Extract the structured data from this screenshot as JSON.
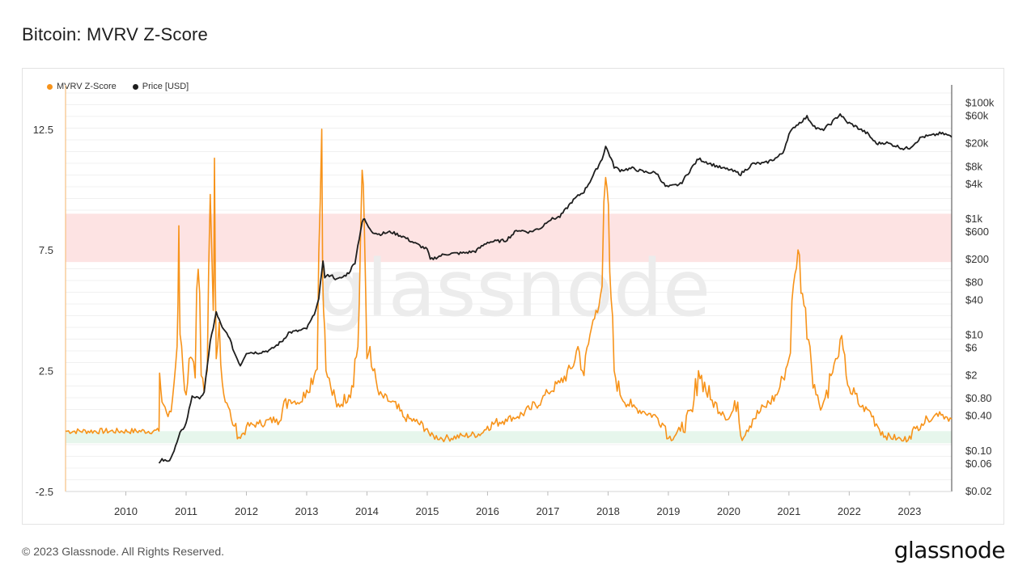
{
  "header": {
    "title": "Bitcoin: MVRV Z-Score"
  },
  "footer": {
    "copyright": "© 2023 Glassnode. All Rights Reserved.",
    "brand": "glassnode"
  },
  "watermark": "glassnode",
  "colors": {
    "mvrv": "#f7931a",
    "price": "#1e1e1e",
    "red_band": "#fde3e3",
    "green_band": "#e6f6ec"
  },
  "chart_data": {
    "type": "line",
    "title": "Bitcoin: MVRV Z-Score",
    "legend": [
      {
        "name": "MVRV Z-Score",
        "color": "#f7931a"
      },
      {
        "name": "Price [USD]",
        "color": "#1e1e1e"
      }
    ],
    "legend_placement": "top-left",
    "grid": true,
    "x_ticks": [
      "2010",
      "2011",
      "2012",
      "2013",
      "2014",
      "2015",
      "2016",
      "2017",
      "2018",
      "2019",
      "2020",
      "2021",
      "2022",
      "2023"
    ],
    "xlim": [
      2009.0,
      2023.7
    ],
    "y_left": {
      "ticks": [
        "12.5",
        "7.5",
        "2.5",
        "-2.5"
      ],
      "tick_values": [
        12.5,
        7.5,
        2.5,
        -2.5
      ],
      "ylim": [
        -2.5,
        14.0
      ]
    },
    "y_right": {
      "scale": "log",
      "ticks": [
        "$100k",
        "$60k",
        "$20k",
        "$8k",
        "$4k",
        "$1k",
        "$600",
        "$200",
        "$80",
        "$40",
        "$10",
        "$6",
        "$2",
        "$0.80",
        "$0.40",
        "$0.10",
        "$0.06",
        "$0.02"
      ],
      "tick_values": [
        100000,
        60000,
        20000,
        8000,
        4000,
        1000,
        600,
        200,
        80,
        40,
        10,
        6,
        2,
        0.8,
        0.4,
        0.1,
        0.06,
        0.02
      ],
      "ylim": [
        0.02,
        150000
      ]
    },
    "bands": [
      {
        "name": "overvalued-zone",
        "y_from": 7.0,
        "y_to": 9.0,
        "color": "#fde3e3"
      },
      {
        "name": "undervalued-zone",
        "y_from": -0.5,
        "y_to": 0.0,
        "color": "#e6f6ec"
      }
    ],
    "series": [
      {
        "name": "MVRV Z-Score",
        "color": "#f7931a",
        "x": [
          2009.0,
          2010.55,
          2010.56,
          2010.6,
          2010.65,
          2010.7,
          2010.75,
          2010.8,
          2010.85,
          2010.88,
          2010.9,
          2010.95,
          2011.0,
          2011.05,
          2011.1,
          2011.15,
          2011.2,
          2011.25,
          2011.3,
          2011.35,
          2011.4,
          2011.45,
          2011.47,
          2011.5,
          2011.55,
          2011.6,
          2011.65,
          2011.7,
          2011.75,
          2011.8,
          2011.9,
          2012.0,
          2012.2,
          2012.5,
          2012.7,
          2012.9,
          2013.0,
          2013.15,
          2013.25,
          2013.28,
          2013.32,
          2013.4,
          2013.5,
          2013.7,
          2013.85,
          2013.92,
          2013.96,
          2014.0,
          2014.05,
          2014.1,
          2014.2,
          2014.4,
          2014.6,
          2014.8,
          2015.0,
          2015.05,
          2015.3,
          2015.6,
          2015.9,
          2016.0,
          2016.3,
          2016.5,
          2016.7,
          2016.9,
          2017.0,
          2017.2,
          2017.4,
          2017.5,
          2017.6,
          2017.7,
          2017.8,
          2017.9,
          2017.96,
          2018.05,
          2018.1,
          2018.2,
          2018.4,
          2018.6,
          2018.8,
          2018.95,
          2019.0,
          2019.2,
          2019.4,
          2019.5,
          2019.7,
          2019.9,
          2020.0,
          2020.15,
          2020.2,
          2020.4,
          2020.6,
          2020.8,
          2020.9,
          2021.0,
          2021.1,
          2021.15,
          2021.25,
          2021.35,
          2021.45,
          2021.55,
          2021.7,
          2021.8,
          2021.85,
          2021.95,
          2022.0,
          2022.2,
          2022.35,
          2022.45,
          2022.6,
          2022.8,
          2022.9,
          2023.0,
          2023.1,
          2023.2,
          2023.3,
          2023.4,
          2023.5,
          2023.6,
          2023.7
        ],
        "values": [
          0.0,
          0.0,
          2.4,
          1.2,
          1.0,
          0.6,
          0.8,
          2.0,
          3.5,
          8.5,
          4.0,
          2.5,
          1.5,
          3.0,
          3.0,
          2.2,
          6.7,
          2.3,
          1.6,
          2.5,
          9.8,
          5.0,
          11.3,
          3.0,
          4.5,
          2.0,
          1.2,
          1.0,
          0.5,
          0.2,
          -0.3,
          0.2,
          0.3,
          0.5,
          1.3,
          1.2,
          1.7,
          2.5,
          12.5,
          5.0,
          2.5,
          1.8,
          1.0,
          1.5,
          3.5,
          10.8,
          8.0,
          3.0,
          3.5,
          2.5,
          1.5,
          1.2,
          0.6,
          0.4,
          0.1,
          -0.2,
          -0.3,
          -0.2,
          -0.1,
          0.2,
          0.5,
          0.6,
          0.9,
          1.3,
          1.6,
          2.0,
          2.6,
          3.5,
          2.3,
          4.0,
          5.0,
          6.0,
          10.5,
          5.5,
          2.5,
          1.5,
          1.0,
          0.8,
          0.6,
          0.2,
          -0.3,
          0.0,
          0.8,
          2.5,
          1.3,
          0.8,
          0.5,
          1.2,
          -0.2,
          0.5,
          1.0,
          1.5,
          2.2,
          3.0,
          6.5,
          7.5,
          5.2,
          3.5,
          1.5,
          1.0,
          2.3,
          3.0,
          3.8,
          2.3,
          1.8,
          1.0,
          0.8,
          0.3,
          -0.2,
          -0.3,
          -0.4,
          -0.2,
          0.1,
          0.3,
          0.5,
          0.6,
          0.8,
          0.6,
          0.5
        ]
      },
      {
        "name": "Price [USD]",
        "color": "#1e1e1e",
        "x": [
          2010.55,
          2010.6,
          2010.7,
          2010.8,
          2010.9,
          2011.0,
          2011.1,
          2011.2,
          2011.3,
          2011.4,
          2011.45,
          2011.5,
          2011.6,
          2011.7,
          2011.8,
          2011.9,
          2012.0,
          2012.2,
          2012.4,
          2012.6,
          2012.7,
          2012.9,
          2013.0,
          2013.1,
          2013.2,
          2013.27,
          2013.3,
          2013.4,
          2013.5,
          2013.6,
          2013.7,
          2013.8,
          2013.92,
          2013.96,
          2014.0,
          2014.1,
          2014.2,
          2014.4,
          2014.6,
          2014.8,
          2015.0,
          2015.05,
          2015.3,
          2015.6,
          2015.8,
          2016.0,
          2016.3,
          2016.5,
          2016.7,
          2016.9,
          2017.0,
          2017.2,
          2017.4,
          2017.5,
          2017.6,
          2017.7,
          2017.8,
          2017.9,
          2017.96,
          2018.05,
          2018.1,
          2018.2,
          2018.4,
          2018.6,
          2018.8,
          2018.95,
          2019.0,
          2019.2,
          2019.4,
          2019.5,
          2019.7,
          2019.9,
          2020.0,
          2020.2,
          2020.4,
          2020.6,
          2020.8,
          2020.9,
          2021.0,
          2021.1,
          2021.2,
          2021.3,
          2021.45,
          2021.55,
          2021.7,
          2021.85,
          2021.95,
          2022.1,
          2022.3,
          2022.45,
          2022.6,
          2022.8,
          2022.9,
          2023.0,
          2023.2,
          2023.4,
          2023.5,
          2023.6,
          2023.7
        ],
        "values": [
          0.06,
          0.07,
          0.065,
          0.1,
          0.2,
          0.3,
          0.9,
          0.8,
          1.0,
          8.0,
          13.0,
          25.0,
          13.0,
          10.0,
          5.0,
          3.0,
          5.0,
          5.0,
          5.5,
          8.0,
          11.0,
          12.0,
          13.0,
          20.0,
          40.0,
          200.0,
          100.0,
          110.0,
          90.0,
          100.0,
          120.0,
          180.0,
          900.0,
          1000.0,
          800.0,
          600.0,
          550.0,
          600.0,
          500.0,
          380.0,
          300.0,
          200.0,
          250.0,
          260.0,
          280.0,
          400.0,
          430.0,
          650.0,
          600.0,
          720.0,
          950.0,
          1100.0,
          2000.0,
          2500.0,
          3000.0,
          4500.0,
          7000.0,
          11000.0,
          18000.0,
          11000.0,
          8000.0,
          7000.0,
          7500.0,
          6500.0,
          6300.0,
          3700.0,
          3600.0,
          4000.0,
          8000.0,
          11000.0,
          9000.0,
          7500.0,
          7200.0,
          6000.0,
          9000.0,
          9200.0,
          11500.0,
          14000.0,
          29000.0,
          40000.0,
          48000.0,
          58000.0,
          37000.0,
          34000.0,
          45000.0,
          65000.0,
          48000.0,
          40000.0,
          30000.0,
          20000.0,
          21000.0,
          18000.0,
          16500.0,
          17000.0,
          26000.0,
          28000.0,
          30000.0,
          29000.0,
          26000.0
        ]
      }
    ]
  }
}
